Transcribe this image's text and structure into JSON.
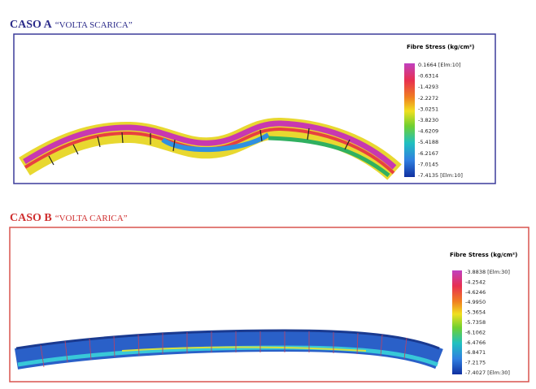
{
  "panels": [
    {
      "title_bold": "CASO A",
      "title_rest": "“VOLTA SCARICA”",
      "legend_title": "Fibre Stress (kg/cm²)",
      "legend_labels": [
        "0.1664 [Elm:10]",
        "-0.6314",
        "-1.4293",
        "-2.2272",
        "-3.0251",
        "-3.8230",
        "-4.6209",
        "-5.4188",
        "-6.2167",
        "-7.0145",
        "-7.4135 [Elm:10]"
      ]
    },
    {
      "title_bold": "CASO B",
      "title_rest": "“VOLTA CARICA”",
      "legend_title": "Fibre Stress (kg/cm²)",
      "legend_labels": [
        "-3.8838 [Elm:30]",
        "-4.2542",
        "-4.6246",
        "-4.9950",
        "-5.3654",
        "-5.7358",
        "-6.1062",
        "-6.4766",
        "-6.8471",
        "-7.2175",
        "-7.4027 [Elm:30]"
      ]
    }
  ]
}
